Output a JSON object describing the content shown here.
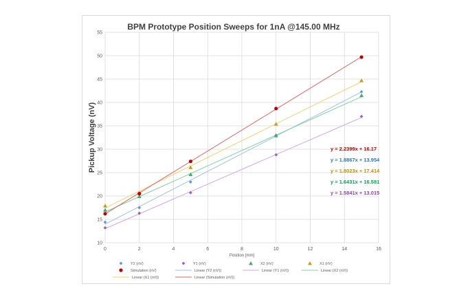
{
  "chart_data": {
    "type": "scatter",
    "title": "BPM Prototype Position Sweeps for 1nA @145.00 MHz",
    "xlabel": "Position [mm]",
    "ylabel": "Pickup Voltage (nV)",
    "xlim": [
      0,
      16
    ],
    "ylim": [
      10,
      55
    ],
    "x_ticks": [
      "0",
      "2",
      "4",
      "6",
      "8",
      "10",
      "12",
      "14",
      "16"
    ],
    "y_ticks": [
      "10",
      "15",
      "20",
      "25",
      "30",
      "35",
      "40",
      "45",
      "50",
      "55"
    ],
    "grid": true,
    "legend_placement": "bottom",
    "series": [
      {
        "name": "Y2 (nV)",
        "marker": "diamond",
        "color": "#5b9bd5",
        "x": [
          0,
          2,
          5,
          10,
          15
        ],
        "y": [
          14.4,
          17.5,
          23.0,
          33.0,
          42.3
        ]
      },
      {
        "name": "Y1 (nV)",
        "marker": "diamond",
        "color": "#9b59c9",
        "x": [
          0,
          2,
          5,
          10,
          15
        ],
        "y": [
          13.2,
          16.3,
          20.7,
          28.8,
          37.0
        ]
      },
      {
        "name": "X2 (nV)",
        "marker": "triangle",
        "color": "#3dae6b",
        "x": [
          0,
          2,
          5,
          10,
          15
        ],
        "y": [
          17.0,
          19.9,
          24.6,
          32.9,
          41.5
        ]
      },
      {
        "name": "X1 (nV)",
        "marker": "triangle",
        "color": "#d29a1a",
        "x": [
          0,
          2,
          5,
          10,
          15
        ],
        "y": [
          17.9,
          20.6,
          26.1,
          35.4,
          44.7
        ]
      },
      {
        "name": "Simulation (nV)",
        "marker": "circle",
        "color": "#c00000",
        "x": [
          0,
          2,
          5,
          10,
          15
        ],
        "y": [
          16.2,
          20.5,
          27.4,
          38.7,
          49.7
        ]
      }
    ],
    "trendlines": [
      {
        "name": "Linear (Y2 (nV))",
        "color": "#9dc3e6",
        "slope": 1.8867,
        "intercept": 13.954
      },
      {
        "name": "Linear (Y1 (nV))",
        "color": "#cfa6e8",
        "slope": 1.5841,
        "intercept": 13.015
      },
      {
        "name": "Linear (X2 (nV))",
        "color": "#7fd3a1",
        "slope": 1.6431,
        "intercept": 16.581
      },
      {
        "name": "Linear (X1 (nV))",
        "color": "#f7d06a",
        "slope": 1.8023,
        "intercept": 17.414
      },
      {
        "name": "Linear (Simulation (nV))",
        "color": "#e06060",
        "slope": 2.2399,
        "intercept": 16.17
      }
    ],
    "equations": [
      {
        "text": "y = 2.2399x + 16.17",
        "color": "#c00000"
      },
      {
        "text": "y = 1.8867x + 13.954",
        "color": "#2e75b6"
      },
      {
        "text": "y = 1.8023x + 17.414",
        "color": "#bf8f00"
      },
      {
        "text": "y = 1.6431x + 16.581",
        "color": "#00a651"
      },
      {
        "text": "y = 1.5841x + 13.015",
        "color": "#8e44ad"
      }
    ],
    "legend": [
      {
        "label": "Y2 (nV)",
        "kind": "diamond",
        "color": "#5b9bd5"
      },
      {
        "label": "Y1 (nV)",
        "kind": "diamond",
        "color": "#9b59c9"
      },
      {
        "label": "X2 (nV)",
        "kind": "triangle",
        "color": "#3dae6b"
      },
      {
        "label": "X1 (nV)",
        "kind": "triangle",
        "color": "#d29a1a"
      },
      {
        "label": "Simulation (nV)",
        "kind": "circle",
        "color": "#c00000"
      },
      {
        "label": "Linear (Y2 (nV))",
        "kind": "line",
        "color": "#9dc3e6"
      },
      {
        "label": "Linear (Y1 (nV))",
        "kind": "line",
        "color": "#cfa6e8"
      },
      {
        "label": "Linear (X2 (nV))",
        "kind": "line",
        "color": "#7fd3a1"
      },
      {
        "label": "Linear (X1 (nV))",
        "kind": "line",
        "color": "#f7d06a"
      },
      {
        "label": "Linear (Simulation (nV))",
        "kind": "line",
        "color": "#e06060"
      }
    ]
  }
}
